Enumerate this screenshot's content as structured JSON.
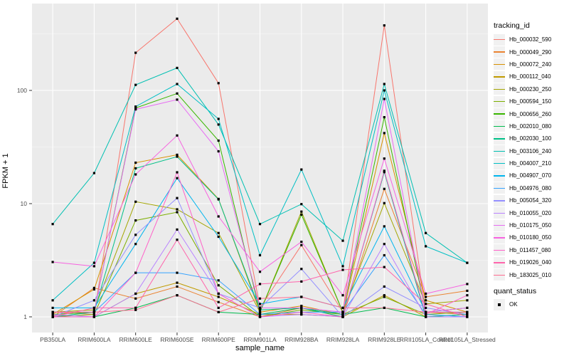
{
  "figure": {
    "background": "#ffffff",
    "panel_background": "#EBEBEB",
    "grid_color": "#FFFFFF",
    "tick_label_color": "#4D4D4D",
    "tick_mark_color": "#333333",
    "marker": "black-square"
  },
  "legend": {
    "tracking_title": "tracking_id",
    "quant_title": "quant_status",
    "quant_value": "OK",
    "quant_key_color": "#000000"
  },
  "chart_data": {
    "type": "line",
    "title": "",
    "xlabel": "sample_name",
    "ylabel": "FPKM + 1",
    "y_scale": "log10",
    "y_ticks": [
      1,
      10,
      100
    ],
    "ylim": [
      1,
      500
    ],
    "grid": true,
    "legend_position": "right",
    "categories": [
      "PB350LA",
      "RRIM600LA",
      "RRIM600LE",
      "RRIM600SE",
      "RRIM600PE",
      "RRIM901LA",
      "RRIM928BA",
      "RRIM928LA",
      "RRIM928LE",
      "RRII105LA_Control",
      "RRII105LA_Stressed"
    ],
    "series": [
      {
        "name": "Hb_000032_590",
        "color": "#F8766D",
        "values": [
          1.1,
          1.05,
          215,
          430,
          116,
          1.2,
          4.3,
          1.1,
          375,
          1.1,
          1.05
        ]
      },
      {
        "name": "Hb_000049_290",
        "color": "#EA8331",
        "values": [
          1.0,
          1.8,
          1.45,
          1.85,
          1.35,
          1.0,
          1.2,
          1.0,
          13.5,
          1.5,
          1.7
        ]
      },
      {
        "name": "Hb_000072_240",
        "color": "#D89000",
        "values": [
          1.05,
          1.75,
          23,
          27,
          11,
          1.1,
          1.25,
          1.05,
          42,
          1.4,
          1.1
        ]
      },
      {
        "name": "Hb_000112_040",
        "color": "#C09B00",
        "values": [
          1.0,
          1.0,
          1.6,
          2.0,
          1.5,
          1.05,
          1.05,
          1.0,
          1.55,
          1.0,
          1.05
        ]
      },
      {
        "name": "Hb_000230_250",
        "color": "#A3A500",
        "values": [
          1.1,
          1.15,
          10.4,
          8.9,
          5.5,
          1.1,
          8.5,
          1.1,
          10.1,
          1.3,
          1.4
        ]
      },
      {
        "name": "Hb_000594_150",
        "color": "#7CAE00",
        "values": [
          1.0,
          1.05,
          7.1,
          8.4,
          1.9,
          1.0,
          1.15,
          1.05,
          1.5,
          1.05,
          1.1
        ]
      },
      {
        "name": "Hb_000656_260",
        "color": "#39B600",
        "values": [
          1.05,
          1.1,
          70,
          94,
          36,
          1.1,
          8.0,
          1.1,
          58,
          1.1,
          1.2
        ]
      },
      {
        "name": "Hb_002010_080",
        "color": "#00BB4E",
        "values": [
          1.0,
          1.0,
          1.2,
          1.55,
          1.1,
          1.05,
          1.2,
          1.05,
          1.2,
          1.0,
          1.0
        ]
      },
      {
        "name": "Hb_002030_100",
        "color": "#00C087",
        "values": [
          1.0,
          1.1,
          20.5,
          26,
          10.9,
          1.15,
          1.2,
          1.0,
          19,
          1.0,
          1.05
        ]
      },
      {
        "name": "Hb_003106_240",
        "color": "#00C0B2",
        "values": [
          6.6,
          18.6,
          112,
          158,
          50,
          6.6,
          9.9,
          4.7,
          114,
          5.5,
          3.0
        ]
      },
      {
        "name": "Hb_004007_210",
        "color": "#00BFC4",
        "values": [
          1.4,
          3.0,
          72,
          114,
          56,
          3.5,
          20,
          2.8,
          100,
          4.2,
          3.0
        ]
      },
      {
        "name": "Hb_004907_070",
        "color": "#00B5EE",
        "values": [
          1.2,
          1.2,
          4.4,
          16.8,
          5.1,
          1.3,
          1.5,
          1.2,
          6.3,
          1.1,
          1.1
        ]
      },
      {
        "name": "Hb_004976_080",
        "color": "#35A2FF",
        "values": [
          1.1,
          1.1,
          2.45,
          2.45,
          2.1,
          1.05,
          1.1,
          1.1,
          3.5,
          1.05,
          1.0
        ]
      },
      {
        "name": "Hb_005054_320",
        "color": "#9590FF",
        "values": [
          1.0,
          1.4,
          5.3,
          11.2,
          1.6,
          1.2,
          2.65,
          1.0,
          1.85,
          1.2,
          1.05
        ]
      },
      {
        "name": "Hb_010055_020",
        "color": "#B983FF",
        "values": [
          1.05,
          1.0,
          1.6,
          5.9,
          1.6,
          1.0,
          1.05,
          1.0,
          4.4,
          1.0,
          1.0
        ]
      },
      {
        "name": "Hb_010175_050",
        "color": "#E76BF3",
        "values": [
          1.1,
          1.1,
          68,
          83,
          29,
          1.2,
          1.2,
          1.1,
          84,
          1.1,
          1.2
        ]
      },
      {
        "name": "Hb_010180_050",
        "color": "#F763E0",
        "values": [
          3.05,
          2.8,
          18.1,
          40,
          7.7,
          2.5,
          4.6,
          1.55,
          25,
          1.6,
          1.95
        ]
      },
      {
        "name": "Hb_011457_080",
        "color": "#FF61C9",
        "values": [
          1.0,
          1.0,
          2.45,
          18.9,
          1.6,
          1.0,
          1.1,
          1.0,
          19.5,
          1.05,
          1.55
        ]
      },
      {
        "name": "Hb_019026_040",
        "color": "#FF65AC",
        "values": [
          1.0,
          1.2,
          1.2,
          4.8,
          1.2,
          1.95,
          2.05,
          2.6,
          2.75,
          1.3,
          1.0
        ]
      },
      {
        "name": "Hb_183025_010",
        "color": "#FF6C91",
        "values": [
          1.1,
          1.1,
          1.15,
          1.55,
          1.1,
          1.45,
          1.5,
          1.2,
          1.2,
          1.1,
          1.1
        ]
      }
    ]
  }
}
